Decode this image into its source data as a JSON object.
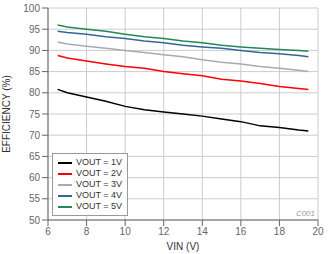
{
  "chart_data": {
    "type": "line",
    "xlabel": "VIN (V)",
    "ylabel": "EFFICIENCY (%)",
    "x": [
      6.5,
      7.0,
      8.0,
      9.0,
      10.0,
      11.0,
      12.0,
      13.0,
      14.0,
      15.0,
      16.0,
      17.0,
      18.0,
      19.0,
      19.5
    ],
    "series": [
      {
        "name": "VOUT = 1V",
        "color": "#000000",
        "values": [
          80.8,
          80.0,
          79.0,
          78.0,
          76.8,
          76.0,
          75.5,
          75.0,
          74.5,
          73.8,
          73.2,
          72.2,
          71.8,
          71.2,
          71.0
        ]
      },
      {
        "name": "VOUT = 2V",
        "color": "#ff0000",
        "values": [
          88.8,
          88.2,
          87.5,
          86.8,
          86.2,
          85.8,
          85.0,
          84.5,
          84.0,
          83.2,
          82.8,
          82.2,
          81.5,
          81.0,
          80.8
        ]
      },
      {
        "name": "VOUT = 3V",
        "color": "#aaaaaa",
        "values": [
          92.0,
          91.5,
          91.0,
          90.5,
          90.0,
          89.5,
          89.0,
          88.5,
          87.8,
          87.2,
          86.8,
          86.2,
          85.8,
          85.3,
          85.0
        ]
      },
      {
        "name": "VOUT = 4V",
        "color": "#336699",
        "values": [
          94.5,
          94.2,
          93.8,
          93.2,
          92.8,
          92.2,
          91.8,
          91.2,
          90.8,
          90.5,
          90.0,
          89.5,
          89.2,
          88.8,
          88.5
        ]
      },
      {
        "name": "VOUT = 5V",
        "color": "#228855",
        "values": [
          96.0,
          95.5,
          95.0,
          94.5,
          93.8,
          93.2,
          92.8,
          92.2,
          91.8,
          91.2,
          90.8,
          90.5,
          90.2,
          90.0,
          89.8
        ]
      }
    ],
    "xlim": [
      6,
      20
    ],
    "ylim": [
      50,
      100
    ],
    "xticks": [
      6,
      8,
      10,
      12,
      14,
      16,
      18,
      20
    ],
    "yticks": [
      50,
      55,
      60,
      65,
      70,
      75,
      80,
      85,
      90,
      95,
      100
    ],
    "grid": true,
    "legend": "lower left",
    "annotations": [
      {
        "text": "C001"
      }
    ]
  }
}
